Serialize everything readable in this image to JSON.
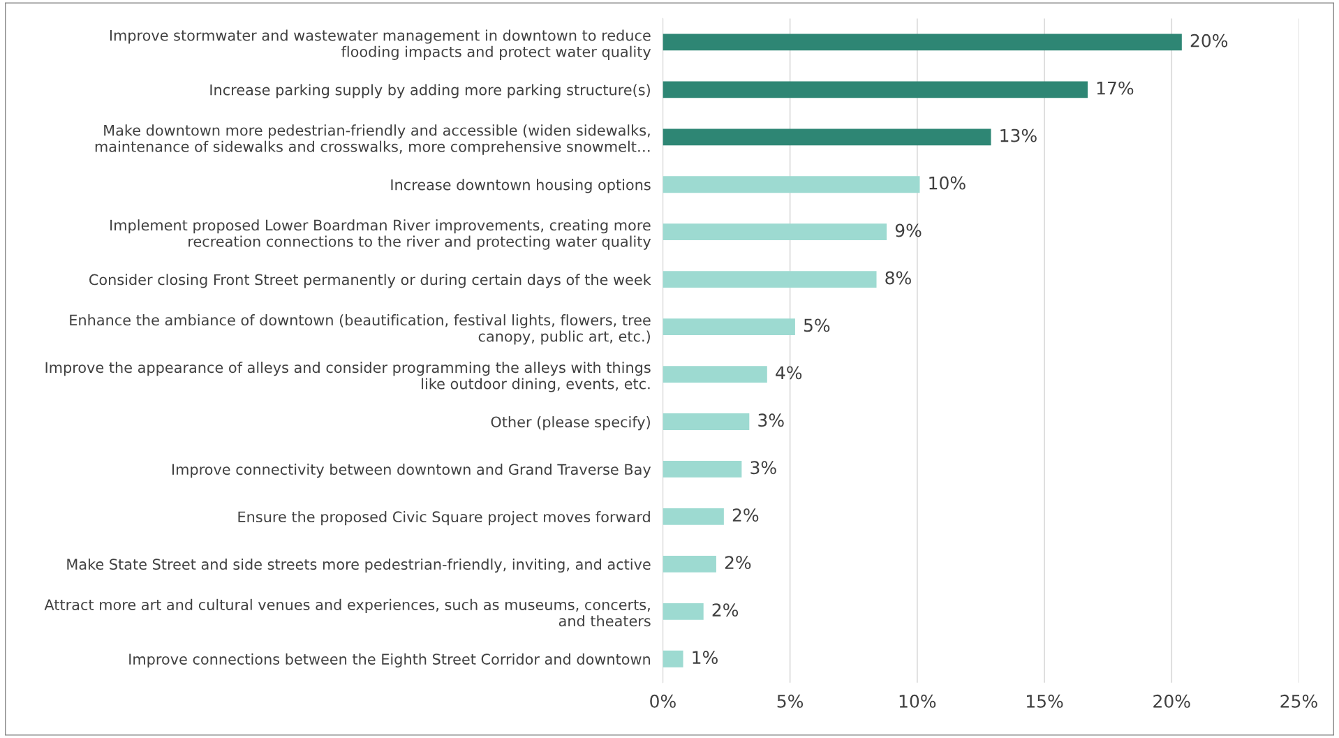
{
  "chart_data": {
    "type": "bar",
    "orientation": "horizontal",
    "categories": [
      "Improve stormwater and wastewater management in downtown to reduce\nflooding impacts and protect water quality",
      "Increase parking supply by adding more parking structure(s)",
      "Make downtown more pedestrian-friendly and accessible (widen sidewalks,\nmaintenance of sidewalks and crosswalks, more comprehensive snowmelt…",
      "Increase downtown housing options",
      "Implement proposed Lower Boardman River improvements, creating more\nrecreation connections to the river and protecting water quality",
      "Consider closing Front Street permanently or during certain days of the week",
      "Enhance the ambiance of downtown (beautification, festival lights, flowers, tree\ncanopy, public art, etc.)",
      "Improve the appearance of alleys and consider programming the alleys with things\nlike outdoor dining, events, etc.",
      "Other (please specify)",
      "Improve connectivity between downtown and Grand Traverse Bay",
      "Ensure the proposed Civic Square project moves forward",
      "Make State Street and side streets more pedestrian-friendly, inviting, and active",
      "Attract more art and cultural venues and experiences, such as museums, concerts,\nand theaters",
      "Improve connections between the Eighth Street Corridor and downtown"
    ],
    "values": [
      20.4,
      16.7,
      12.9,
      10.1,
      8.8,
      8.4,
      5.2,
      4.1,
      3.4,
      3.1,
      2.4,
      2.1,
      1.6,
      0.8
    ],
    "value_labels": [
      "20%",
      "17%",
      "13%",
      "10%",
      "9%",
      "8%",
      "5%",
      "4%",
      "3%",
      "3%",
      "2%",
      "2%",
      "2%",
      "1%"
    ],
    "colors": [
      "#2e8674",
      "#2e8674",
      "#2e8674",
      "#9ddad1",
      "#9ddad1",
      "#9ddad1",
      "#9ddad1",
      "#9ddad1",
      "#9ddad1",
      "#9ddad1",
      "#9ddad1",
      "#9ddad1",
      "#9ddad1",
      "#9ddad1"
    ],
    "xlim": [
      0,
      25
    ],
    "xticks": [
      {
        "value": 0,
        "label": "0%"
      },
      {
        "value": 5,
        "label": "5%"
      },
      {
        "value": 10,
        "label": "10%"
      },
      {
        "value": 15,
        "label": "15%"
      },
      {
        "value": 20,
        "label": "20%"
      },
      {
        "value": 25,
        "label": "25%"
      }
    ],
    "grid": "x"
  }
}
